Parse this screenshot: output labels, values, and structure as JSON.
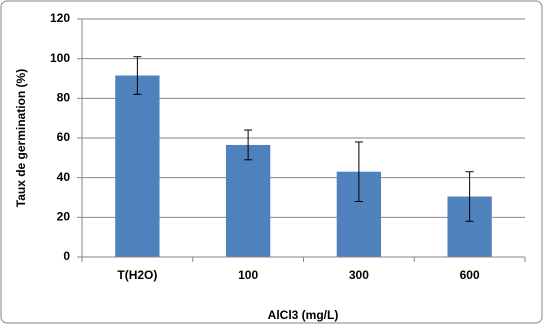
{
  "chart_data": {
    "type": "bar",
    "categories": [
      "T(H2O)",
      "100",
      "300",
      "600"
    ],
    "values": [
      91.5,
      56.5,
      43,
      30.5
    ],
    "errors": [
      9.5,
      7.5,
      15,
      12.5
    ],
    "color": "#4f81bd",
    "xlabel": "AlCl3 (mg/L)",
    "ylabel": "Taux de germination (%)",
    "ylim": [
      0,
      120
    ],
    "yticks": [
      0,
      20,
      40,
      60,
      80,
      100,
      120
    ],
    "grid": true
  }
}
